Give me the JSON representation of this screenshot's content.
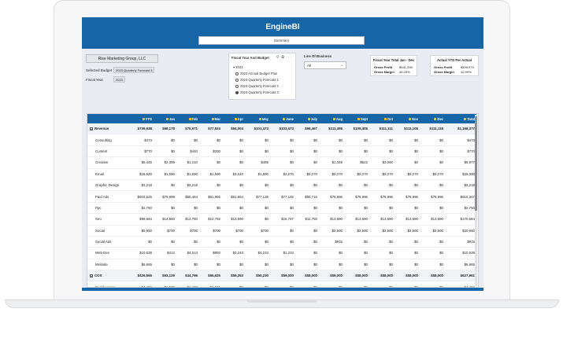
{
  "app": {
    "title": "EngineBI",
    "tab": "Summary"
  },
  "filters": {
    "company": "Rise Marketing Group, LLC",
    "selected_budget_label": "Selected Budget",
    "selected_budget_value": "2023 Quarterly Forecast 3",
    "fiscal_year_label": "Fiscal Year",
    "fiscal_year_value": "2023"
  },
  "slicer": {
    "title": "Fiscal Year And Budget",
    "year": "2023",
    "options": [
      "2023 Annual Budget Plan",
      "2023 Quarterly Forecast 1",
      "2023 Quarterly Forecast 2",
      "2023 Quarterly Forecast 3"
    ],
    "selected_index": 3
  },
  "line_of_business": {
    "title": "Line Of Business",
    "value": "All"
  },
  "kpi_fiscal": {
    "title": "Fiscal Year Total Jan - Dec",
    "profit_label": "Gross Profit",
    "profit_value": "$541,296",
    "margin_label": "Gross Margin",
    "margin_value": "46.25%"
  },
  "kpi_ytd": {
    "title": "Actual YTD Per Actual",
    "profit_label": "Gross Profit",
    "profit_value": "$309,973",
    "margin_label": "Gross Margin",
    "margin_value": "42.99%"
  },
  "table": {
    "columns": [
      "",
      "YTD",
      "Jan",
      "Feb",
      "Mar",
      "Apr",
      "May",
      "June",
      "July",
      "Aug",
      "Sept",
      "Oct",
      "Nov",
      "Dec",
      "Total"
    ],
    "rows": [
      {
        "type": "group",
        "cells": [
          "Revenue",
          "$736,538",
          "$68,178",
          "$75,971",
          "$77,524",
          "$84,004",
          "$101,473",
          "$103,473",
          "$96,467",
          "$111,495",
          "$105,405",
          "$111,111",
          "$111,105",
          "$111,118",
          "$1,168,377"
        ]
      },
      {
        "type": "item",
        "cells": [
          "Consulting",
          "$473",
          "$0",
          "$0",
          "$0",
          "$0",
          "$0",
          "$0",
          "$0",
          "$0",
          "$0",
          "$0",
          "$0",
          "$0",
          "$473"
        ]
      },
      {
        "type": "item",
        "cells": [
          "Content",
          "$770",
          "$0",
          "$440",
          "$330",
          "$0",
          "$0",
          "$0",
          "$0",
          "$0",
          "$0",
          "$0",
          "$0",
          "$0",
          "$770"
        ]
      },
      {
        "type": "item",
        "cells": [
          "Creative",
          "$5,445",
          "$2,399",
          "$1,210",
          "$0",
          "$0",
          "$495",
          "$0",
          "$0",
          "$1,348",
          "$622",
          "$3,000",
          "$0",
          "$0",
          "$9,977"
        ]
      },
      {
        "type": "item",
        "cells": [
          "Email",
          "$18,520",
          "$1,590",
          "$1,590",
          "$1,590",
          "$3,020",
          "$1,590",
          "$2,270",
          "$2,270",
          "$2,270",
          "$2,270",
          "$2,270",
          "$2,270",
          "$2,270",
          "$25,300"
        ]
      },
      {
        "type": "item",
        "cells": [
          "Graphic Design",
          "$3,218",
          "$0",
          "$3,218",
          "$0",
          "$0",
          "$0",
          "$0",
          "$0",
          "$0",
          "$0",
          "$0",
          "$0",
          "$0",
          "$3,218"
        ]
      },
      {
        "type": "item",
        "cells": [
          "Paid Ads",
          "$503,526",
          "$79,999",
          "$65,464",
          "$61,902",
          "$61,964",
          "$77,135",
          "$77,192",
          "$80,715",
          "$79,595",
          "$79,995",
          "$79,995",
          "$79,995",
          "$79,995",
          "$915,347"
        ]
      },
      {
        "type": "item",
        "cells": [
          "Ppc",
          "$2,750",
          "$0",
          "$0",
          "$0",
          "$0",
          "$0",
          "$0",
          "$0",
          "$0",
          "$0",
          "$0",
          "$0",
          "$0",
          "$2,750"
        ]
      },
      {
        "type": "item",
        "cells": [
          "Seo",
          "$98,684",
          "$14,550",
          "$13,760",
          "$12,792",
          "$13,590",
          "$0",
          "$16,767",
          "$11,750",
          "$13,590",
          "$13,590",
          "$13,590",
          "$13,590",
          "$13,590",
          "$170,684"
        ]
      },
      {
        "type": "item",
        "cells": [
          "Social",
          "$5,650",
          "$700",
          "$700",
          "$700",
          "$700",
          "$700",
          "$0",
          "$0",
          "$2,500",
          "$2,500",
          "$2,500",
          "$2,500",
          "$2,500",
          "$20,650"
        ]
      },
      {
        "type": "item",
        "cells": [
          "Social Ads",
          "$0",
          "$0",
          "$0",
          "$0",
          "$0",
          "$0",
          "$0",
          "$0",
          "$915",
          "$0",
          "$0",
          "$0",
          "$0",
          "$915"
        ]
      },
      {
        "type": "item",
        "cells": [
          "Web Dev",
          "$10,639",
          "$412",
          "$4,513",
          "$850",
          "$3,243",
          "$4,234",
          "$1,234",
          "$0",
          "$0",
          "$0",
          "$0",
          "$0",
          "$0",
          "$10,639"
        ]
      },
      {
        "type": "item",
        "cells": [
          "Website",
          "$6,665",
          "$0",
          "$0",
          "$0",
          "$0",
          "$0",
          "$0",
          "$0",
          "$0",
          "$0",
          "$0",
          "$0",
          "$0",
          "$6,665"
        ]
      },
      {
        "type": "group",
        "cells": [
          "COS",
          "$426,565",
          "$53,129",
          "$44,796",
          "$55,625",
          "$55,353",
          "$50,230",
          "$59,000",
          "$58,000",
          "$59,000",
          "$58,000",
          "$58,000",
          "$58,000",
          "$58,000",
          "$627,961"
        ]
      },
      {
        "type": "item",
        "cells": [
          "Bookkeeping",
          "$4,492",
          "$1,509",
          "$1,432",
          "$1,551",
          "$0",
          "$0",
          "$0",
          "$0",
          "$0",
          "$0",
          "$0",
          "$0",
          "$0",
          "$4,492"
        ]
      },
      {
        "type": "item",
        "cells": [
          "Creative",
          "$14,918",
          "$1,599",
          "$2,754",
          "$1,874",
          "$1,784",
          "$1,784",
          "$1,784",
          "$1,784",
          "$1,784",
          "$1,784",
          "$1,784",
          "$1,784",
          "$1,784",
          "$24,918"
        ]
      },
      {
        "type": "item",
        "cells": [
          "Paid Ads",
          "$311,611",
          "$38,566",
          "$35,414",
          "$35,925",
          "$35,925",
          "$35,925",
          "$37,925",
          "$36,105",
          "$36,105",
          "$36,105",
          "$36,105",
          "$36,105",
          "$36,105",
          "$455,928"
        ]
      }
    ]
  }
}
